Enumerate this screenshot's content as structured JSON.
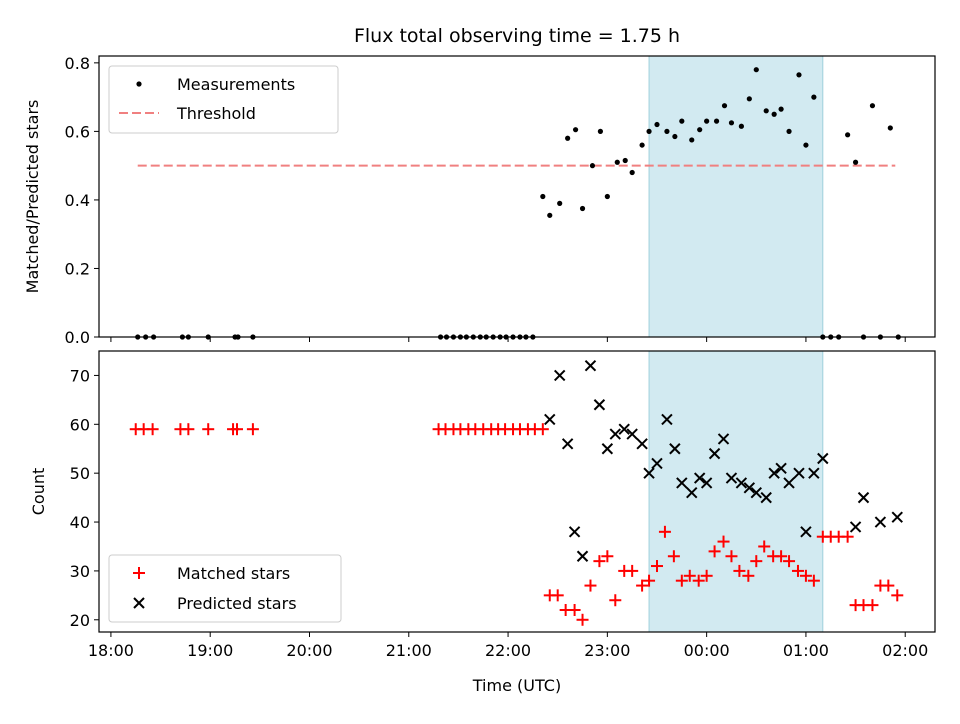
{
  "chart_data": {
    "title": "Flux total observing time = 1.75 h",
    "xlabel": "Time (UTC)",
    "x_ticks": [
      "18:00",
      "19:00",
      "20:00",
      "21:00",
      "22:00",
      "23:00",
      "00:00",
      "01:00",
      "02:00"
    ],
    "xlim_hours": [
      17.88,
      26.3
    ],
    "shaded_region_hours": [
      23.42,
      25.17
    ],
    "shade_color": "#add8e6",
    "panels": [
      {
        "type": "scatter",
        "ylabel": "Matched/Predicted stars",
        "ylim": [
          0,
          0.82
        ],
        "y_ticks": [
          "0.0",
          "0.2",
          "0.4",
          "0.6",
          "0.8"
        ],
        "y_tick_values": [
          0,
          0.2,
          0.4,
          0.6,
          0.8
        ],
        "legend": {
          "position": "upper-left",
          "entries": [
            "Measurements",
            "Threshold"
          ]
        },
        "threshold": {
          "name": "Threshold",
          "y": 0.5,
          "x_range": [
            18.27,
            25.9
          ],
          "color": "#f08080"
        },
        "series": [
          {
            "name": "Measurements",
            "marker": "dot",
            "color": "#000000",
            "x": [
              18.27,
              18.35,
              18.43,
              18.72,
              18.78,
              18.98,
              19.25,
              19.28,
              19.43,
              21.32,
              21.38,
              21.45,
              21.52,
              21.58,
              21.65,
              21.72,
              21.78,
              21.85,
              21.92,
              21.98,
              22.05,
              22.12,
              22.18,
              22.25,
              22.35,
              22.42,
              22.52,
              22.6,
              22.68,
              22.75,
              22.85,
              22.93,
              23.0,
              23.1,
              23.18,
              23.25,
              23.35,
              23.42,
              23.5,
              23.6,
              23.68,
              23.75,
              23.85,
              23.93,
              24.0,
              24.1,
              24.18,
              24.25,
              24.35,
              24.43,
              24.5,
              24.6,
              24.68,
              24.75,
              24.83,
              24.93,
              25.0,
              25.08,
              25.17,
              25.25,
              25.33,
              25.42,
              25.5,
              25.58,
              25.67,
              25.75,
              25.85,
              25.93
            ],
            "y": [
              0,
              0,
              0,
              0,
              0,
              0,
              0,
              0,
              0,
              0,
              0,
              0,
              0,
              0,
              0,
              0,
              0,
              0,
              0,
              0,
              0,
              0,
              0,
              0,
              0.41,
              0.355,
              0.39,
              0.58,
              0.605,
              0.375,
              0.5,
              0.6,
              0.41,
              0.51,
              0.515,
              0.48,
              0.56,
              0.6,
              0.62,
              0.6,
              0.585,
              0.63,
              0.575,
              0.605,
              0.63,
              0.63,
              0.675,
              0.625,
              0.615,
              0.695,
              0.78,
              0.66,
              0.65,
              0.665,
              0.6,
              0.765,
              0.56,
              0.7,
              0,
              0,
              0,
              0.59,
              0.51,
              0,
              0.675,
              0,
              0.61,
              0
            ]
          }
        ]
      },
      {
        "type": "scatter",
        "ylabel": "Count",
        "ylim": [
          17.5,
          75
        ],
        "y_ticks": [
          "20",
          "30",
          "40",
          "50",
          "60",
          "70"
        ],
        "y_tick_values": [
          20,
          30,
          40,
          50,
          60,
          70
        ],
        "legend": {
          "position": "lower-left",
          "entries": [
            "Matched stars",
            "Predicted stars"
          ]
        },
        "series": [
          {
            "name": "Matched stars",
            "marker": "plus",
            "color": "#ff0000",
            "x": [
              18.25,
              18.33,
              18.42,
              18.7,
              18.78,
              18.98,
              19.23,
              19.27,
              19.43,
              21.3,
              21.37,
              21.45,
              21.52,
              21.6,
              21.67,
              21.75,
              21.83,
              21.9,
              21.97,
              22.05,
              22.12,
              22.2,
              22.27,
              22.35,
              22.42,
              22.5,
              22.58,
              22.67,
              22.75,
              22.83,
              22.92,
              23.0,
              23.08,
              23.17,
              23.25,
              23.35,
              23.42,
              23.5,
              23.58,
              23.67,
              23.75,
              23.83,
              23.92,
              24.0,
              24.08,
              24.17,
              24.25,
              24.33,
              24.42,
              24.5,
              24.58,
              24.67,
              24.75,
              24.83,
              24.92,
              25.0,
              25.08,
              25.17,
              25.25,
              25.33,
              25.42,
              25.5,
              25.58,
              25.67,
              25.75,
              25.83,
              25.92
            ],
            "y": [
              59,
              59,
              59,
              59,
              59,
              59,
              59,
              59,
              59,
              59,
              59,
              59,
              59,
              59,
              59,
              59,
              59,
              59,
              59,
              59,
              59,
              59,
              59,
              59,
              25,
              25,
              22,
              22,
              20,
              27,
              32,
              33,
              24,
              30,
              30,
              27,
              28,
              31,
              38,
              33,
              28,
              29,
              28,
              29,
              34,
              36,
              33,
              30,
              29,
              32,
              35,
              33,
              33,
              32,
              30,
              29,
              28,
              37,
              37,
              37,
              37,
              23,
              23,
              23,
              27,
              27,
              25
            ]
          },
          {
            "name": "Predicted stars",
            "marker": "cross",
            "color": "#000000",
            "x": [
              22.42,
              22.52,
              22.6,
              22.67,
              22.75,
              22.83,
              22.92,
              23.0,
              23.08,
              23.17,
              23.25,
              23.35,
              23.42,
              23.5,
              23.6,
              23.68,
              23.75,
              23.85,
              23.93,
              24.0,
              24.08,
              24.17,
              24.25,
              24.35,
              24.43,
              24.5,
              24.6,
              24.68,
              24.75,
              24.83,
              24.93,
              25.0,
              25.08,
              25.17,
              25.5,
              25.58,
              25.75,
              25.92
            ],
            "y": [
              61,
              70,
              56,
              38,
              33,
              72,
              64,
              55,
              58,
              59,
              58,
              56,
              50,
              52,
              61,
              55,
              48,
              46,
              49,
              48,
              54,
              57,
              49,
              48,
              47,
              46,
              45,
              50,
              51,
              48,
              50,
              38,
              50,
              53,
              39,
              45,
              40,
              41
            ]
          }
        ]
      }
    ]
  }
}
